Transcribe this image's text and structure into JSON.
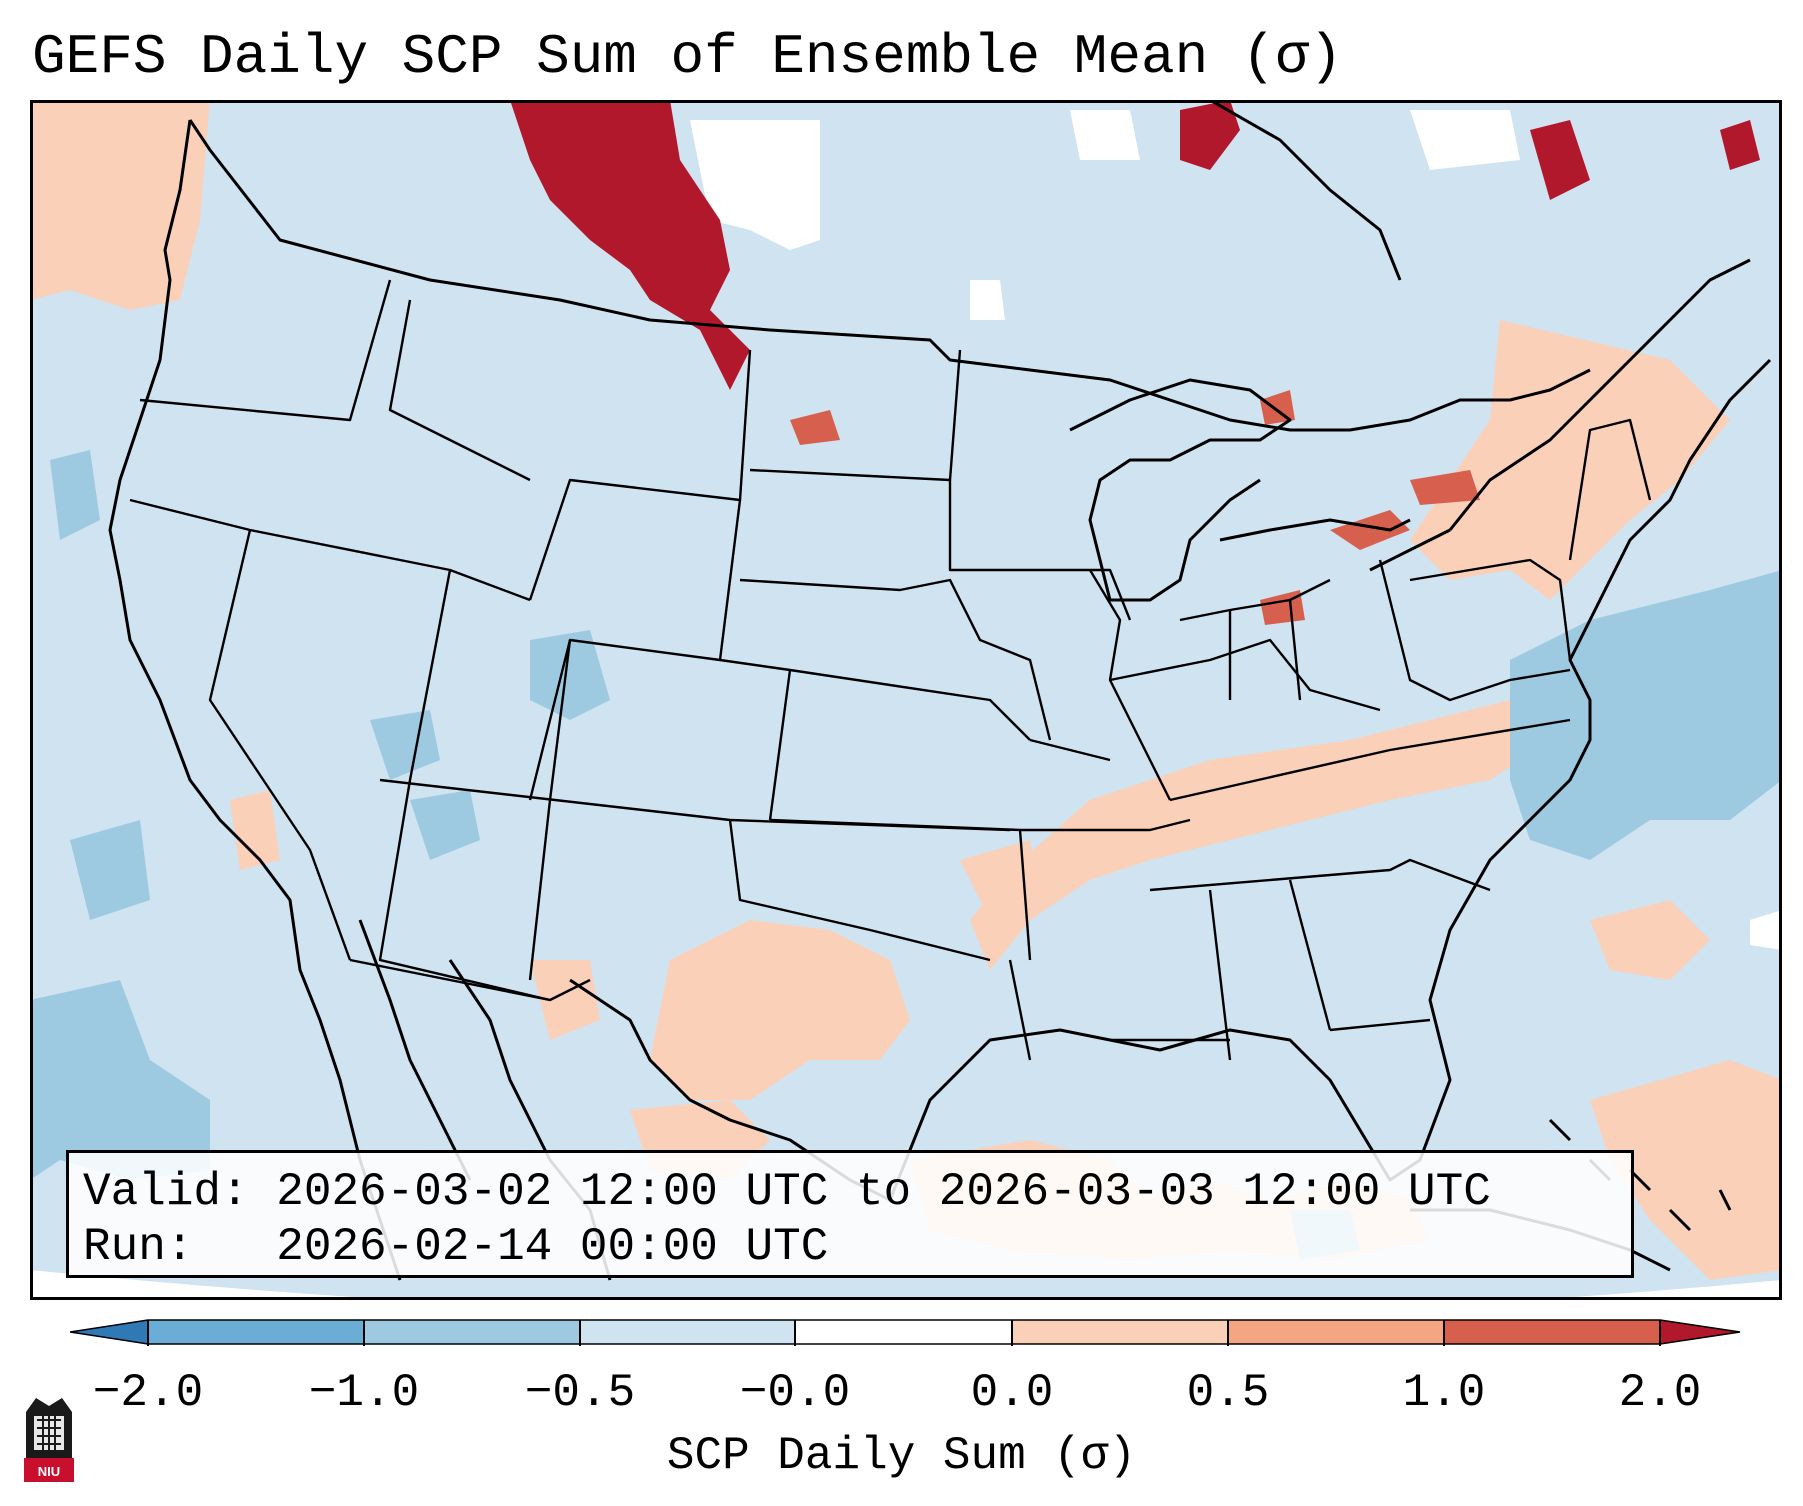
{
  "title": "GEFS Daily SCP Sum of Ensemble Mean (σ)",
  "info": {
    "valid_line": "Valid: 2026-03-02 12:00 UTC to 2026-03-03 12:00 UTC",
    "run_line": "Run:   2026-02-14 00:00 UTC"
  },
  "colorbar": {
    "label": "SCP Daily Sum (σ)",
    "ticks": [
      "−2.0",
      "−1.0",
      "−0.5",
      "−0.0",
      "0.0",
      "0.5",
      "1.0",
      "2.0"
    ],
    "colors": [
      "#2f79b5",
      "#6aaed6",
      "#9ecae1",
      "#d0e3f0",
      "#ffffff",
      "#fbd0b9",
      "#f4a582",
      "#d6604d",
      "#b2182b"
    ],
    "extend": "both"
  },
  "logo": {
    "text": "NIU"
  },
  "map_colors": {
    "ocean_fill": "#d0e3f0",
    "state_lines": "#000000",
    "positive_anomaly": "#fbd0b9",
    "strong_positive": "#b2182b"
  }
}
